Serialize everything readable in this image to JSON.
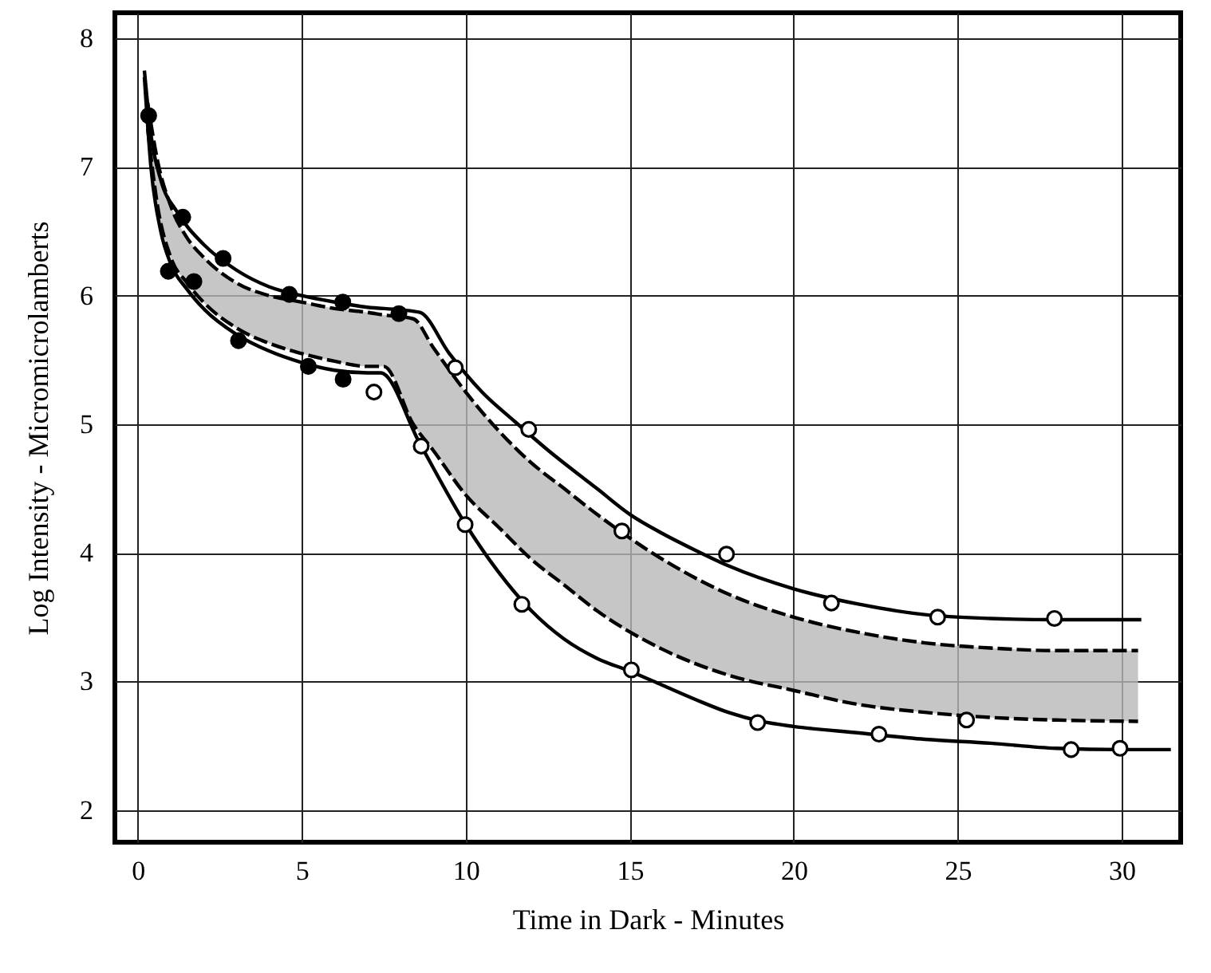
{
  "chart_data": {
    "type": "line",
    "xlabel": "Time in Dark - Minutes",
    "ylabel": "Log Intensity - Micromicrolamberts",
    "xlim": [
      -0.7,
      31.8
    ],
    "ylim": [
      1.75,
      8.2
    ],
    "xticks": [
      0,
      5,
      10,
      15,
      20,
      25,
      30
    ],
    "yticks": [
      2,
      3,
      4,
      5,
      6,
      7,
      8
    ],
    "grid": true,
    "series": [
      {
        "color": "#000000",
        "line_style": "dashed",
        "x": [
          0.3,
          0.6,
          1,
          1.5,
          2,
          3,
          4,
          5,
          6,
          7,
          7.5,
          8.4,
          9,
          10,
          11,
          12,
          13,
          14,
          16,
          18,
          20,
          22,
          24,
          26,
          28,
          30.5
        ],
        "values": [
          7.5,
          7.05,
          6.7,
          6.45,
          6.3,
          6.1,
          6.0,
          5.95,
          5.9,
          5.87,
          5.85,
          5.82,
          5.6,
          5.25,
          4.95,
          4.7,
          4.5,
          4.3,
          3.95,
          3.68,
          3.5,
          3.38,
          3.3,
          3.26,
          3.24,
          3.24
        ],
        "upper": [
          7.5,
          7.05,
          6.7,
          6.45,
          6.3,
          6.1,
          6.0,
          5.95,
          5.9,
          5.87,
          5.85,
          5.82,
          5.6,
          5.25,
          4.95,
          4.7,
          4.5,
          4.3,
          3.95,
          3.68,
          3.5,
          3.38,
          3.3,
          3.26,
          3.24,
          3.24
        ],
        "lower": [
          7.3,
          6.7,
          6.3,
          6.1,
          5.95,
          5.75,
          5.63,
          5.55,
          5.49,
          5.45,
          5.45,
          5.0,
          4.8,
          4.45,
          4.2,
          3.95,
          3.75,
          3.55,
          3.25,
          3.05,
          2.93,
          2.82,
          2.76,
          2.72,
          2.7,
          2.69
        ]
      },
      {
        "color": "#000000",
        "line_style": "dashed",
        "x": [
          0.3,
          0.6,
          1,
          1.5,
          2,
          3,
          4,
          5,
          6,
          7,
          7.5,
          8.4,
          9,
          10,
          11,
          12,
          13,
          14,
          16,
          18,
          20,
          22,
          24,
          26,
          28,
          30.5
        ],
        "values": [
          7.3,
          6.7,
          6.3,
          6.1,
          5.95,
          5.75,
          5.63,
          5.55,
          5.49,
          5.45,
          5.45,
          5.0,
          4.8,
          4.45,
          4.2,
          3.95,
          3.75,
          3.55,
          3.25,
          3.05,
          2.93,
          2.82,
          2.76,
          2.72,
          2.7,
          2.69
        ]
      },
      {
        "color": "#000000",
        "line_style": "solid",
        "x": [
          0.2,
          0.4,
          0.7,
          1.2,
          2,
          3,
          4,
          5,
          6,
          7,
          8,
          8.6,
          9.5,
          10.5,
          11.5,
          12.5,
          14,
          15,
          16,
          17,
          18,
          20,
          22,
          24,
          26,
          28,
          30.6
        ],
        "values": [
          7.75,
          7.25,
          6.9,
          6.65,
          6.4,
          6.2,
          6.07,
          6.0,
          5.95,
          5.91,
          5.89,
          5.87,
          5.55,
          5.25,
          5.02,
          4.8,
          4.5,
          4.3,
          4.15,
          4.02,
          3.9,
          3.72,
          3.6,
          3.52,
          3.49,
          3.48,
          3.48
        ]
      },
      {
        "color": "#000000",
        "line_style": "solid",
        "x": [
          0.2,
          0.4,
          0.7,
          1,
          1.5,
          2,
          3,
          4,
          5,
          6,
          7,
          7.4,
          8.6,
          10,
          11,
          12,
          13,
          14,
          15,
          16,
          17,
          18,
          19,
          20,
          22,
          24,
          26,
          28,
          30,
          31.5
        ],
        "values": [
          7.7,
          7.0,
          6.5,
          6.25,
          6.05,
          5.9,
          5.7,
          5.57,
          5.48,
          5.42,
          5.4,
          5.4,
          4.85,
          4.22,
          3.85,
          3.55,
          3.33,
          3.18,
          3.08,
          2.97,
          2.86,
          2.76,
          2.69,
          2.65,
          2.6,
          2.55,
          2.52,
          2.48,
          2.47,
          2.47
        ]
      },
      {
        "type": "scatter",
        "marker": "circle",
        "color": "#000000",
        "x": [
          0.33,
          1.37,
          2.6,
          4.62,
          6.25,
          7.96,
          0.93,
          1.71,
          3.07,
          5.2,
          6.26
        ],
        "values": [
          7.4,
          6.61,
          6.29,
          6.01,
          5.95,
          5.86,
          6.19,
          6.11,
          5.65,
          5.45,
          5.35
        ]
      },
      {
        "type": "scatter",
        "marker": "circle",
        "color": "#ffffff",
        "x": [
          7.2,
          9.68,
          11.92,
          8.64,
          14.76,
          9.98,
          17.95,
          11.71,
          15.05,
          18.9,
          21.15,
          24.39,
          27.95,
          22.6,
          25.27,
          28.46,
          29.95
        ],
        "values": [
          5.25,
          5.44,
          4.96,
          4.83,
          4.17,
          4.22,
          3.99,
          3.6,
          3.09,
          2.68,
          3.61,
          3.5,
          3.49,
          2.59,
          2.7,
          2.47,
          2.48
        ]
      }
    ]
  }
}
